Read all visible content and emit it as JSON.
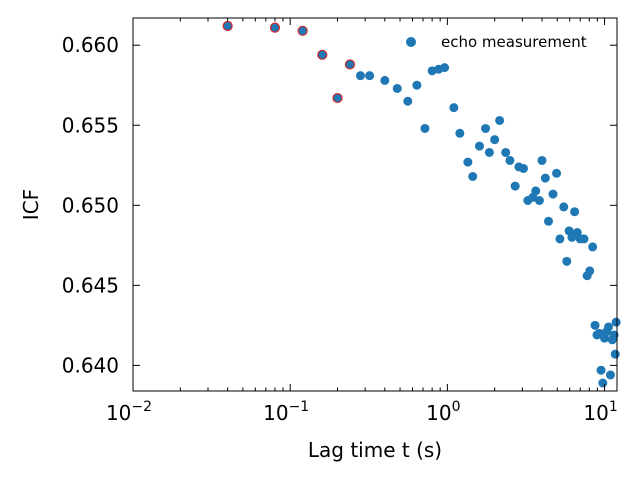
{
  "chart_data": {
    "type": "scatter",
    "title": "",
    "xlabel": "Lag time t (s)",
    "ylabel": "ICF",
    "xscale": "log",
    "xlim": [
      0.01,
      12
    ],
    "ylim": [
      0.6384,
      0.6617
    ],
    "grid": false,
    "legend_position": "top-right",
    "colors": {
      "series": "#1f77b4",
      "highlight_edge": "#d62728"
    },
    "x_ticks": [
      {
        "value": 0.01,
        "base": "10",
        "exp": "−2"
      },
      {
        "value": 0.1,
        "base": "10",
        "exp": "−1"
      },
      {
        "value": 1,
        "base": "10",
        "exp": "0"
      },
      {
        "value": 10,
        "base": "10",
        "exp": "1"
      }
    ],
    "y_ticks": [
      {
        "value": 0.64,
        "label": "0.640"
      },
      {
        "value": 0.645,
        "label": "0.645"
      },
      {
        "value": 0.65,
        "label": "0.650"
      },
      {
        "value": 0.655,
        "label": "0.655"
      },
      {
        "value": 0.66,
        "label": "0.660"
      }
    ],
    "series": [
      {
        "name": "echo measurement",
        "points": [
          [
            0.04,
            0.6612
          ],
          [
            0.08,
            0.6611
          ],
          [
            0.12,
            0.6609
          ],
          [
            0.16,
            0.6594
          ],
          [
            0.2,
            0.6567
          ],
          [
            0.24,
            0.6588
          ],
          [
            0.28,
            0.6581
          ],
          [
            0.32,
            0.6581
          ],
          [
            0.4,
            0.6578
          ],
          [
            0.48,
            0.6573
          ],
          [
            0.56,
            0.6565
          ],
          [
            0.64,
            0.6575
          ],
          [
            0.72,
            0.6548
          ],
          [
            0.8,
            0.6584
          ],
          [
            0.88,
            0.6585
          ],
          [
            0.96,
            0.6586
          ],
          [
            1.1,
            0.6561
          ],
          [
            1.2,
            0.6545
          ],
          [
            1.35,
            0.6527
          ],
          [
            1.45,
            0.6518
          ],
          [
            1.6,
            0.6537
          ],
          [
            1.75,
            0.6548
          ],
          [
            1.85,
            0.6533
          ],
          [
            2.0,
            0.6541
          ],
          [
            2.15,
            0.6553
          ],
          [
            2.35,
            0.6533
          ],
          [
            2.5,
            0.6528
          ],
          [
            2.7,
            0.6512
          ],
          [
            2.85,
            0.6524
          ],
          [
            3.05,
            0.6523
          ],
          [
            3.25,
            0.6503
          ],
          [
            3.5,
            0.6505
          ],
          [
            3.65,
            0.6509
          ],
          [
            3.85,
            0.6503
          ],
          [
            4.0,
            0.6528
          ],
          [
            4.2,
            0.6517
          ],
          [
            4.4,
            0.649
          ],
          [
            4.7,
            0.6507
          ],
          [
            4.95,
            0.652
          ],
          [
            5.2,
            0.6479
          ],
          [
            5.5,
            0.6499
          ],
          [
            5.75,
            0.6465
          ],
          [
            5.95,
            0.6484
          ],
          [
            6.2,
            0.648
          ],
          [
            6.45,
            0.6496
          ],
          [
            6.7,
            0.6483
          ],
          [
            7.0,
            0.6479
          ],
          [
            7.4,
            0.6479
          ],
          [
            7.75,
            0.6456
          ],
          [
            8.05,
            0.6459
          ],
          [
            8.4,
            0.6474
          ],
          [
            8.7,
            0.6425
          ],
          [
            8.95,
            0.6419
          ],
          [
            9.25,
            0.642
          ],
          [
            9.5,
            0.6397
          ],
          [
            9.75,
            0.6389
          ],
          [
            10.0,
            0.6417
          ],
          [
            10.3,
            0.6421
          ],
          [
            10.6,
            0.6424
          ],
          [
            10.9,
            0.6394
          ],
          [
            11.2,
            0.6416
          ],
          [
            11.5,
            0.6419
          ],
          [
            11.7,
            0.6407
          ],
          [
            11.85,
            0.6427
          ]
        ]
      }
    ],
    "highlighted_points": [
      [
        0.04,
        0.6612
      ],
      [
        0.08,
        0.6611
      ],
      [
        0.12,
        0.6609
      ],
      [
        0.16,
        0.6594
      ],
      [
        0.2,
        0.6567
      ],
      [
        0.24,
        0.6588
      ]
    ]
  }
}
